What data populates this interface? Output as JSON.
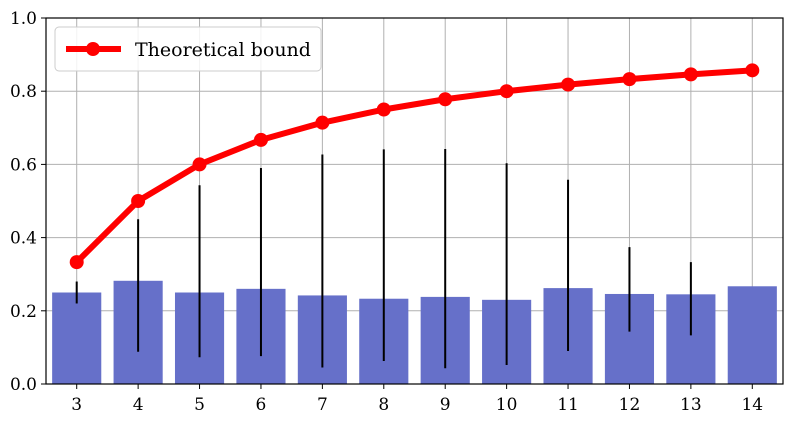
{
  "chart_data": {
    "type": "bar",
    "categories": [
      "3",
      "4",
      "5",
      "6",
      "7",
      "8",
      "9",
      "10",
      "11",
      "12",
      "13",
      "14"
    ],
    "title": "",
    "xlabel": "",
    "ylabel": "",
    "ylim": [
      0,
      1.0
    ],
    "yticks": [
      "0.0",
      "0.2",
      "0.4",
      "0.6",
      "0.8",
      "1.0"
    ],
    "grid": true,
    "legend": {
      "placement": "top-left",
      "entries": [
        "Theoretical bound"
      ]
    },
    "series": [
      {
        "type": "bar",
        "values": [
          0.25,
          0.282,
          0.25,
          0.26,
          0.242,
          0.233,
          0.238,
          0.23,
          0.262,
          0.246,
          0.245,
          0.267
        ],
        "error_low": [
          0.22,
          0.088,
          0.073,
          0.076,
          0.045,
          0.063,
          0.043,
          0.052,
          0.09,
          0.143,
          0.133,
          0.267
        ],
        "error_high": [
          0.28,
          0.45,
          0.543,
          0.59,
          0.627,
          0.641,
          0.642,
          0.603,
          0.558,
          0.374,
          0.333,
          0.267
        ],
        "color": "#6670c9",
        "error_color": "#000000"
      },
      {
        "type": "line",
        "name": "Theoretical bound",
        "values": [
          0.333,
          0.5,
          0.6,
          0.667,
          0.714,
          0.75,
          0.778,
          0.8,
          0.818,
          0.833,
          0.846,
          0.857
        ],
        "color": "#ff0000"
      }
    ]
  }
}
